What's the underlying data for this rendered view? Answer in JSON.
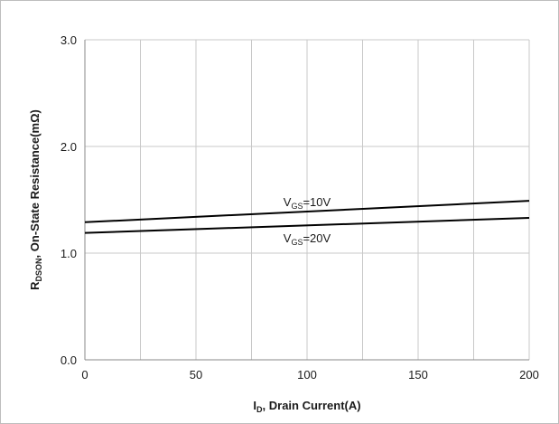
{
  "chart_data": {
    "type": "line",
    "title": "",
    "xlabel": {
      "main": "I",
      "sub": "D",
      "rest": ", Drain Current(A)"
    },
    "ylabel": {
      "main": "R",
      "sub": "DSON",
      "rest": ", On-State Resistance(mΩ)"
    },
    "xlim": [
      0,
      200
    ],
    "ylim": [
      0,
      3
    ],
    "x_ticks": [
      0,
      50,
      100,
      150,
      200
    ],
    "x_tick_labels": [
      "0",
      "50",
      "100",
      "150",
      "200"
    ],
    "y_ticks": [
      0,
      1,
      2,
      3
    ],
    "y_tick_labels": [
      "0.0",
      "1.0",
      "2.0",
      "3.0"
    ],
    "x_gridlines": [
      25,
      50,
      75,
      100,
      125,
      150,
      175,
      200
    ],
    "y_gridlines": [
      1,
      2,
      3
    ],
    "grid": true,
    "series": [
      {
        "label": {
          "main": "V",
          "sub": "GS",
          "rest": "=10V"
        },
        "label_at": {
          "x": 100,
          "y": 1.44
        },
        "color": "#000000",
        "x": [
          0,
          200
        ],
        "y": [
          1.29,
          1.49
        ]
      },
      {
        "label": {
          "main": "V",
          "sub": "GS",
          "rest": "=20V"
        },
        "label_at": {
          "x": 100,
          "y": 1.1
        },
        "color": "#000000",
        "x": [
          0,
          200
        ],
        "y": [
          1.19,
          1.33
        ]
      }
    ]
  }
}
